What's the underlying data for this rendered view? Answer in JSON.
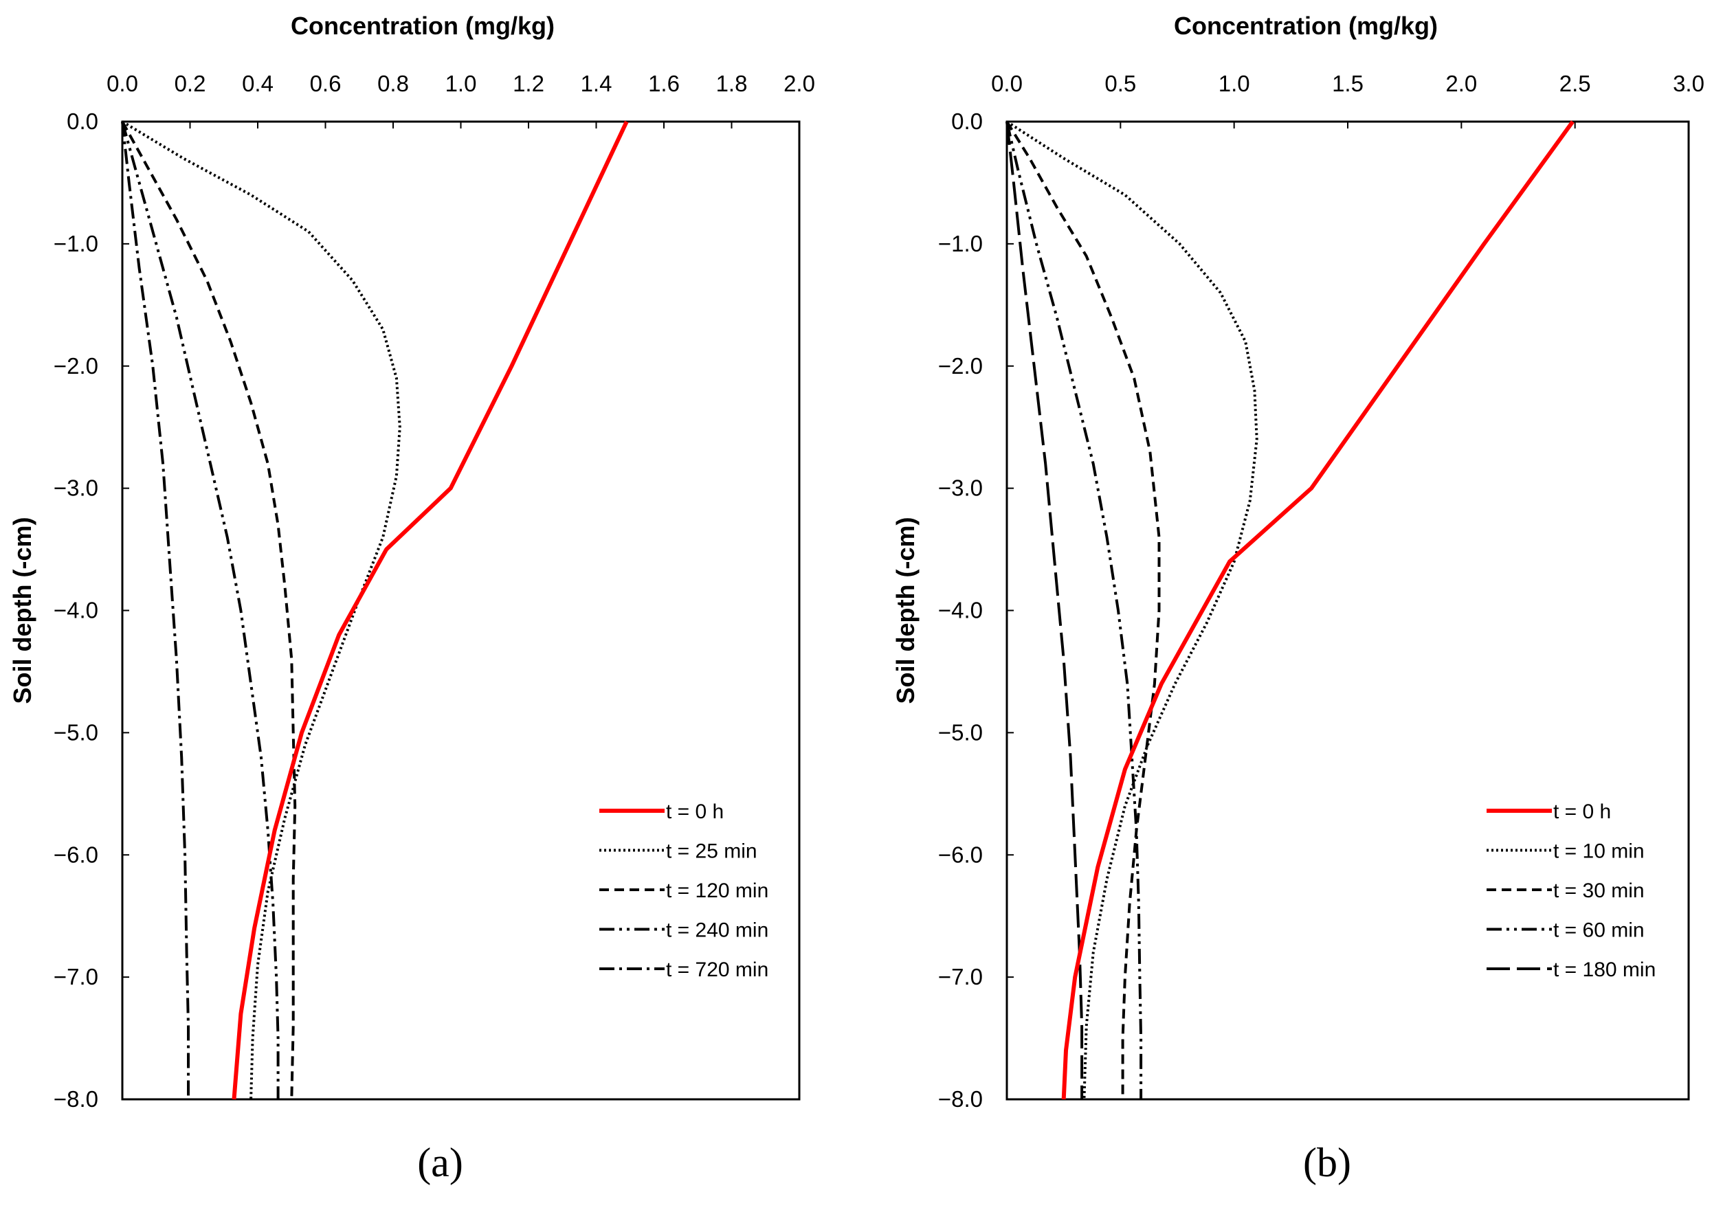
{
  "chart_data": [
    {
      "type": "line",
      "panel_label": "(a)",
      "xlabel": "Concentration (mg/kg)",
      "ylabel": "Soil depth (-cm)",
      "xlim": [
        0,
        2.0
      ],
      "ylim": [
        -8.0,
        0.0
      ],
      "xticks": [
        "0.0",
        "0.2",
        "0.4",
        "0.6",
        "0.8",
        "1.0",
        "1.2",
        "1.4",
        "1.6",
        "1.8",
        "2.0"
      ],
      "yticks": [
        "0.0",
        "−1.0",
        "−2.0",
        "−3.0",
        "−4.0",
        "−5.0",
        "−6.0",
        "−7.0",
        "−8.0"
      ],
      "legend_position": "bottom-right",
      "series": [
        {
          "name": "t = 0 h",
          "style": "solid",
          "color": "#ff0000",
          "points": [
            [
              1.49,
              0
            ],
            [
              1.32,
              -1
            ],
            [
              1.15,
              -2
            ],
            [
              0.97,
              -3
            ],
            [
              0.78,
              -3.5
            ],
            [
              0.64,
              -4.2
            ],
            [
              0.53,
              -5.0
            ],
            [
              0.45,
              -5.8
            ],
            [
              0.39,
              -6.6
            ],
            [
              0.35,
              -7.3
            ],
            [
              0.33,
              -8.0
            ]
          ]
        },
        {
          "name": "t = 25 min",
          "style": "dotted",
          "color": "#000000",
          "points": [
            [
              0.0,
              0
            ],
            [
              0.18,
              -0.3
            ],
            [
              0.38,
              -0.6
            ],
            [
              0.55,
              -0.9
            ],
            [
              0.68,
              -1.3
            ],
            [
              0.77,
              -1.7
            ],
            [
              0.81,
              -2.1
            ],
            [
              0.82,
              -2.5
            ],
            [
              0.81,
              -2.9
            ],
            [
              0.77,
              -3.4
            ],
            [
              0.7,
              -3.9
            ],
            [
              0.62,
              -4.5
            ],
            [
              0.54,
              -5.1
            ],
            [
              0.48,
              -5.7
            ],
            [
              0.43,
              -6.3
            ],
            [
              0.4,
              -6.9
            ],
            [
              0.385,
              -7.5
            ],
            [
              0.38,
              -8.0
            ]
          ]
        },
        {
          "name": "t = 120 min",
          "style": "dashed",
          "color": "#000000",
          "points": [
            [
              0.0,
              0
            ],
            [
              0.07,
              -0.35
            ],
            [
              0.16,
              -0.8
            ],
            [
              0.25,
              -1.3
            ],
            [
              0.32,
              -1.8
            ],
            [
              0.38,
              -2.3
            ],
            [
              0.43,
              -2.8
            ],
            [
              0.46,
              -3.3
            ],
            [
              0.48,
              -3.8
            ],
            [
              0.5,
              -4.4
            ],
            [
              0.505,
              -5.0
            ],
            [
              0.51,
              -5.6
            ],
            [
              0.505,
              -6.2
            ],
            [
              0.505,
              -6.8
            ],
            [
              0.505,
              -7.4
            ],
            [
              0.5,
              -8.0
            ]
          ]
        },
        {
          "name": "t = 240 min",
          "style": "dashdotdot",
          "color": "#000000",
          "points": [
            [
              0.0,
              0
            ],
            [
              0.04,
              -0.4
            ],
            [
              0.1,
              -1.0
            ],
            [
              0.16,
              -1.6
            ],
            [
              0.21,
              -2.2
            ],
            [
              0.26,
              -2.8
            ],
            [
              0.31,
              -3.4
            ],
            [
              0.35,
              -4.0
            ],
            [
              0.38,
              -4.6
            ],
            [
              0.41,
              -5.2
            ],
            [
              0.43,
              -5.8
            ],
            [
              0.445,
              -6.4
            ],
            [
              0.455,
              -7.0
            ],
            [
              0.46,
              -7.5
            ],
            [
              0.46,
              -8.0
            ]
          ]
        },
        {
          "name": "t = 720 min",
          "style": "dashdot",
          "color": "#000000",
          "points": [
            [
              0.0,
              0
            ],
            [
              0.02,
              -0.5
            ],
            [
              0.05,
              -1.2
            ],
            [
              0.09,
              -2.0
            ],
            [
              0.12,
              -2.8
            ],
            [
              0.14,
              -3.6
            ],
            [
              0.16,
              -4.4
            ],
            [
              0.175,
              -5.2
            ],
            [
              0.185,
              -6.0
            ],
            [
              0.19,
              -6.8
            ],
            [
              0.195,
              -7.4
            ],
            [
              0.195,
              -8.0
            ]
          ]
        }
      ]
    },
    {
      "type": "line",
      "panel_label": "(b)",
      "xlabel": "Concentration (mg/kg)",
      "ylabel": "Soil depth (-cm)",
      "xlim": [
        0,
        3.0
      ],
      "ylim": [
        -8.0,
        0.0
      ],
      "xticks": [
        "0.0",
        "0.5",
        "1.0",
        "1.5",
        "2.0",
        "2.5",
        "3.0"
      ],
      "yticks": [
        "0.0",
        "−1.0",
        "−2.0",
        "−3.0",
        "−4.0",
        "−5.0",
        "−6.0",
        "−7.0",
        "−8.0"
      ],
      "legend_position": "bottom-right",
      "series": [
        {
          "name": "t = 0 h",
          "style": "solid",
          "color": "#ff0000",
          "points": [
            [
              2.49,
              0
            ],
            [
              2.1,
              -1
            ],
            [
              1.72,
              -2
            ],
            [
              1.34,
              -3
            ],
            [
              0.98,
              -3.6
            ],
            [
              0.68,
              -4.6
            ],
            [
              0.52,
              -5.3
            ],
            [
              0.4,
              -6.1
            ],
            [
              0.3,
              -7.0
            ],
            [
              0.26,
              -7.6
            ],
            [
              0.25,
              -8.0
            ]
          ]
        },
        {
          "name": "t = 10 min",
          "style": "dotted",
          "color": "#000000",
          "points": [
            [
              0.0,
              0
            ],
            [
              0.25,
              -0.3
            ],
            [
              0.52,
              -0.6
            ],
            [
              0.76,
              -1.0
            ],
            [
              0.94,
              -1.4
            ],
            [
              1.05,
              -1.8
            ],
            [
              1.09,
              -2.2
            ],
            [
              1.1,
              -2.6
            ],
            [
              1.07,
              -3.1
            ],
            [
              1.0,
              -3.6
            ],
            [
              0.88,
              -4.1
            ],
            [
              0.74,
              -4.6
            ],
            [
              0.62,
              -5.1
            ],
            [
              0.52,
              -5.6
            ],
            [
              0.44,
              -6.2
            ],
            [
              0.38,
              -6.8
            ],
            [
              0.35,
              -7.4
            ],
            [
              0.34,
              -8.0
            ]
          ]
        },
        {
          "name": "t = 30 min",
          "style": "dashed",
          "color": "#000000",
          "points": [
            [
              0.0,
              0
            ],
            [
              0.1,
              -0.3
            ],
            [
              0.22,
              -0.7
            ],
            [
              0.35,
              -1.1
            ],
            [
              0.46,
              -1.6
            ],
            [
              0.56,
              -2.1
            ],
            [
              0.63,
              -2.7
            ],
            [
              0.67,
              -3.4
            ],
            [
              0.67,
              -4.0
            ],
            [
              0.65,
              -4.6
            ],
            [
              0.61,
              -5.2
            ],
            [
              0.57,
              -5.8
            ],
            [
              0.54,
              -6.4
            ],
            [
              0.52,
              -7.0
            ],
            [
              0.51,
              -7.5
            ],
            [
              0.51,
              -8.0
            ]
          ]
        },
        {
          "name": "t = 60 min",
          "style": "dashdotdot",
          "color": "#000000",
          "points": [
            [
              0.0,
              0
            ],
            [
              0.05,
              -0.4
            ],
            [
              0.13,
              -1.0
            ],
            [
              0.22,
              -1.6
            ],
            [
              0.3,
              -2.2
            ],
            [
              0.38,
              -2.8
            ],
            [
              0.44,
              -3.4
            ],
            [
              0.49,
              -4.0
            ],
            [
              0.53,
              -4.6
            ],
            [
              0.55,
              -5.2
            ],
            [
              0.57,
              -5.8
            ],
            [
              0.58,
              -6.4
            ],
            [
              0.585,
              -7.0
            ],
            [
              0.59,
              -7.5
            ],
            [
              0.59,
              -8.0
            ]
          ]
        },
        {
          "name": "t = 180 min",
          "style": "longdash",
          "color": "#000000",
          "points": [
            [
              0.0,
              0
            ],
            [
              0.03,
              -0.5
            ],
            [
              0.07,
              -1.2
            ],
            [
              0.12,
              -2.0
            ],
            [
              0.17,
              -2.8
            ],
            [
              0.21,
              -3.6
            ],
            [
              0.25,
              -4.4
            ],
            [
              0.28,
              -5.2
            ],
            [
              0.3,
              -6.0
            ],
            [
              0.32,
              -6.8
            ],
            [
              0.33,
              -7.4
            ],
            [
              0.33,
              -8.0
            ]
          ]
        }
      ]
    }
  ]
}
